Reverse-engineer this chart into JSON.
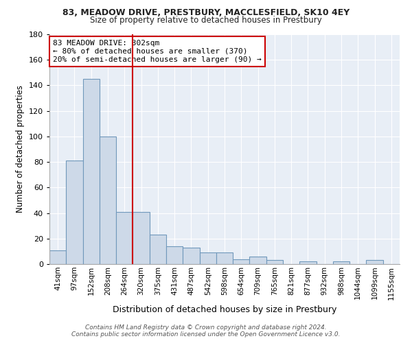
{
  "title1": "83, MEADOW DRIVE, PRESTBURY, MACCLESFIELD, SK10 4EY",
  "title2": "Size of property relative to detached houses in Prestbury",
  "xlabel": "Distribution of detached houses by size in Prestbury",
  "ylabel": "Number of detached properties",
  "categories": [
    "41sqm",
    "97sqm",
    "152sqm",
    "208sqm",
    "264sqm",
    "320sqm",
    "375sqm",
    "431sqm",
    "487sqm",
    "542sqm",
    "598sqm",
    "654sqm",
    "709sqm",
    "765sqm",
    "821sqm",
    "877sqm",
    "932sqm",
    "988sqm",
    "1044sqm",
    "1099sqm",
    "1155sqm"
  ],
  "values": [
    11,
    81,
    145,
    100,
    41,
    41,
    23,
    14,
    13,
    9,
    9,
    4,
    6,
    3,
    0,
    2,
    0,
    2,
    0,
    3,
    0
  ],
  "bar_color": "#cdd9e8",
  "bar_edge_color": "#7098bb",
  "vline_x": 4.5,
  "vline_color": "#cc0000",
  "annotation_text": "83 MEADOW DRIVE: 302sqm\n← 80% of detached houses are smaller (370)\n20% of semi-detached houses are larger (90) →",
  "annotation_box_color": "#ffffff",
  "annotation_box_edge": "#cc0000",
  "ylim": [
    0,
    180
  ],
  "yticks": [
    0,
    20,
    40,
    60,
    80,
    100,
    120,
    140,
    160,
    180
  ],
  "footnote": "Contains HM Land Registry data © Crown copyright and database right 2024.\nContains public sector information licensed under the Open Government Licence v3.0.",
  "bg_color": "#e8eef6",
  "fig_bg_color": "#ffffff",
  "grid_color": "#ffffff"
}
